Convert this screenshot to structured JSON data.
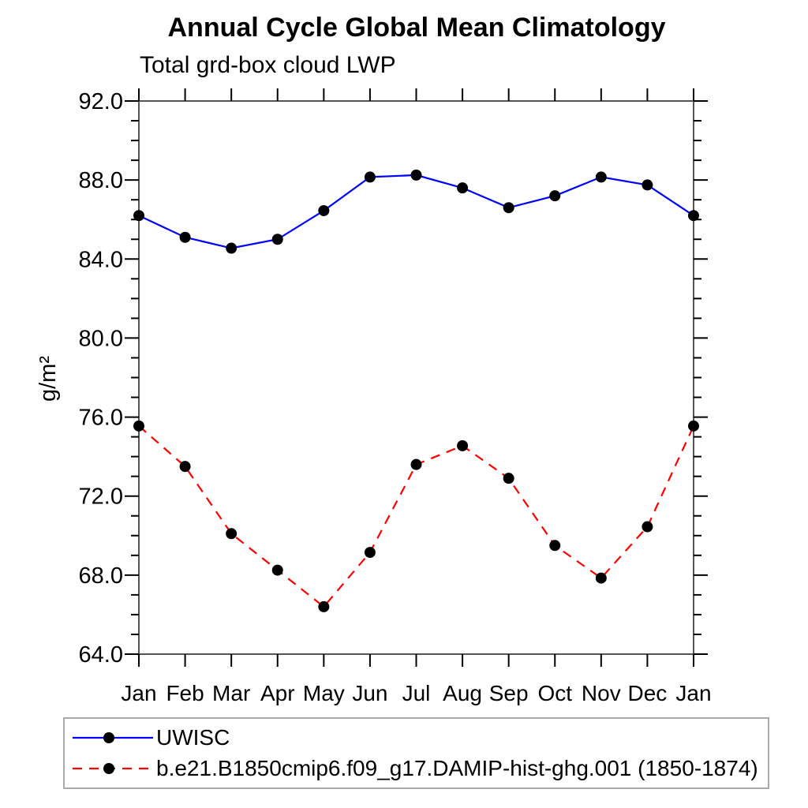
{
  "title": "Annual Cycle Global Mean Climatology",
  "subtitle": "Total grd-box cloud LWP",
  "ylabel": "g/m²",
  "colors": {
    "frame": "#555555",
    "tick": "#000000",
    "text": "#000000",
    "legend_border": "#aaaaaa",
    "marker": "#000000",
    "series_blue": "#0000ff",
    "series_red": "#ff0000"
  },
  "chart_data": {
    "type": "line",
    "title": "Annual Cycle Global Mean Climatology",
    "subtitle": "Total grd-box cloud LWP",
    "xlabel": "",
    "ylabel": "g/m²",
    "categories": [
      "Jan",
      "Feb",
      "Mar",
      "Apr",
      "May",
      "Jun",
      "Jul",
      "Aug",
      "Sep",
      "Oct",
      "Nov",
      "Dec",
      "Jan"
    ],
    "ylim": [
      64.0,
      92.0
    ],
    "ytick_major": [
      64.0,
      68.0,
      72.0,
      76.0,
      80.0,
      84.0,
      88.0,
      92.0
    ],
    "ytick_labels": [
      "64.0",
      "68.0",
      "72.0",
      "76.0",
      "80.0",
      "84.0",
      "88.0",
      "92.0"
    ],
    "ytick_minor_step": 1.0,
    "grid": false,
    "legend_position": "bottom-left",
    "series": [
      {
        "name": "UWISC",
        "color": "#0000ff",
        "line_style": "solid",
        "marker": "circle",
        "marker_color": "#000000",
        "values": [
          86.2,
          85.1,
          84.55,
          85.0,
          86.45,
          88.15,
          88.25,
          87.6,
          86.6,
          87.2,
          88.15,
          87.75,
          86.2
        ]
      },
      {
        "name": "b.e21.B1850cmip6.f09_g17.DAMIP-hist-ghg.001 (1850-1874)",
        "color": "#ff0000",
        "line_style": "dashed",
        "marker": "circle",
        "marker_color": "#000000",
        "values": [
          75.55,
          73.5,
          70.1,
          68.25,
          66.4,
          69.15,
          73.6,
          74.55,
          72.9,
          69.5,
          67.85,
          70.45,
          75.55
        ]
      }
    ]
  }
}
